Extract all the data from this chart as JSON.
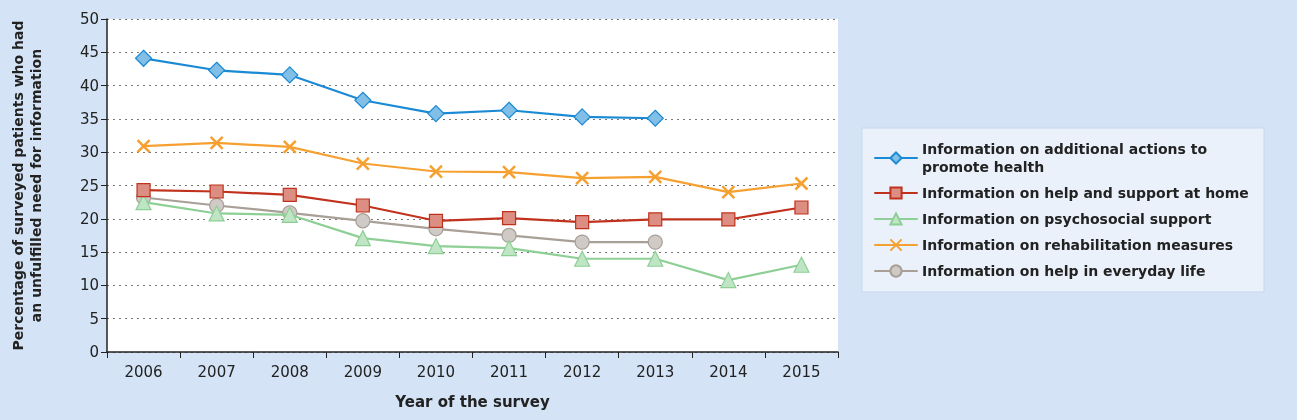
{
  "chart_data": {
    "type": "line",
    "xlabel": "Year of the survey",
    "ylabel": "Percentage of surveyed patients who had an unfulfilled need for information",
    "categories": [
      "2006",
      "2007",
      "2008",
      "2009",
      "2010",
      "2011",
      "2012",
      "2013",
      "2014",
      "2015"
    ],
    "ylim": [
      0,
      50
    ],
    "yticks": [
      0,
      5,
      10,
      15,
      20,
      25,
      30,
      35,
      40,
      45,
      50
    ],
    "grid": "y",
    "legend": "right",
    "line_style": "solid",
    "series": [
      {
        "name": "Information on additional actions to promote health",
        "color": "#1a8ad4",
        "marker": "diamond",
        "values": [
          44.1,
          42.3,
          41.6,
          37.8,
          35.8,
          36.3,
          35.3,
          35.1,
          null,
          null
        ]
      },
      {
        "name": "Information on help and support at home",
        "color": "#c0321d",
        "marker": "square",
        "values": [
          24.3,
          24.1,
          23.6,
          22.0,
          19.7,
          20.1,
          19.5,
          19.9,
          19.9,
          21.7
        ]
      },
      {
        "name": "Information on psychosocial support",
        "color": "#8dcf95",
        "marker": "triangle",
        "values": [
          22.5,
          20.8,
          20.6,
          17.1,
          15.9,
          15.6,
          14.0,
          14.0,
          10.8,
          13.1
        ]
      },
      {
        "name": "Information on rehabilitation measures",
        "color": "#f5a030",
        "marker": "cross",
        "values": [
          30.9,
          31.4,
          30.8,
          28.3,
          27.1,
          27.0,
          26.1,
          26.3,
          24.0,
          25.3
        ]
      },
      {
        "name": "Information on help in everyday life",
        "color": "#a89f96",
        "marker": "circle",
        "values": [
          23.2,
          22.0,
          20.9,
          19.7,
          18.5,
          17.5,
          16.5,
          16.5,
          null,
          null
        ]
      }
    ]
  }
}
